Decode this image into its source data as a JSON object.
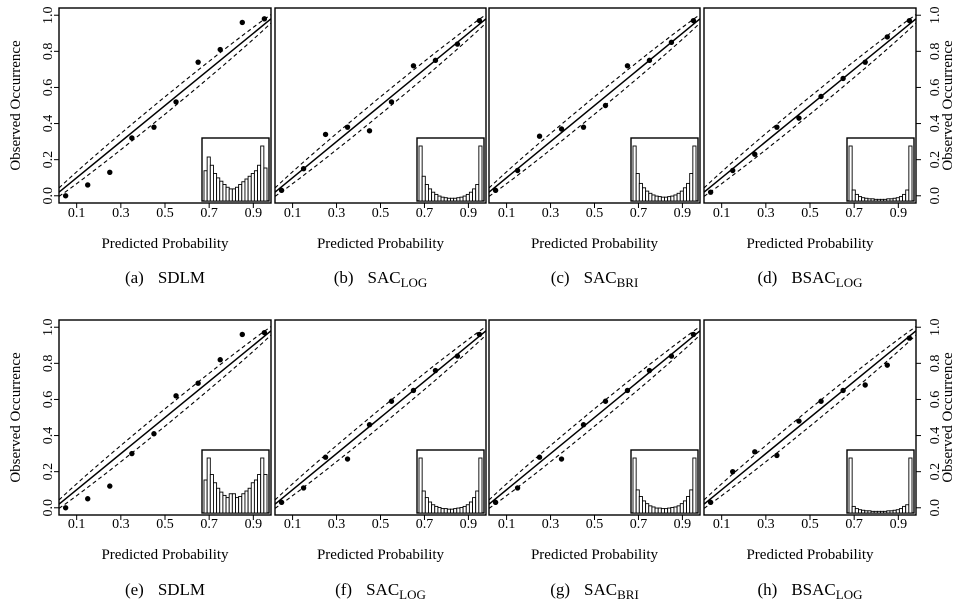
{
  "figure": {
    "xlabel": "Predicted Probability",
    "ylabel": "Observed Occurrence"
  },
  "chart_data": [
    {
      "type": "scatter",
      "panel": "a",
      "caption_prefix": "(a)",
      "caption_main": "SDLM",
      "caption_sub": "",
      "xticks": [
        "0.1",
        "0.3",
        "0.5",
        "0.7",
        "0.9"
      ],
      "yticks": [
        "0.0",
        "0.2",
        "0.4",
        "0.6",
        "0.8",
        "1.0"
      ],
      "xlim": [
        0.02,
        0.98
      ],
      "ylim": [
        -0.04,
        1.04
      ],
      "x": [
        0.05,
        0.15,
        0.25,
        0.35,
        0.45,
        0.55,
        0.65,
        0.75,
        0.85,
        0.95
      ],
      "y": [
        0.0,
        0.06,
        0.13,
        0.32,
        0.38,
        0.52,
        0.74,
        0.81,
        0.96,
        0.98
      ],
      "hist": [
        0.55,
        0.8,
        0.65,
        0.5,
        0.42,
        0.36,
        0.3,
        0.25,
        0.22,
        0.22,
        0.25,
        0.3,
        0.35,
        0.4,
        0.45,
        0.5,
        0.55,
        0.65,
        1.0,
        0.6
      ]
    },
    {
      "type": "scatter",
      "panel": "b",
      "caption_prefix": "(b)",
      "caption_main": "SAC",
      "caption_sub": "LOG",
      "xticks": [
        "0.1",
        "0.3",
        "0.5",
        "0.7",
        "0.9"
      ],
      "yticks": [
        "0.0",
        "0.2",
        "0.4",
        "0.6",
        "0.8",
        "1.0"
      ],
      "xlim": [
        0.02,
        0.98
      ],
      "ylim": [
        -0.04,
        1.04
      ],
      "x": [
        0.05,
        0.15,
        0.25,
        0.35,
        0.45,
        0.55,
        0.65,
        0.75,
        0.85,
        0.95
      ],
      "y": [
        0.03,
        0.15,
        0.34,
        0.38,
        0.36,
        0.52,
        0.72,
        0.75,
        0.84,
        0.97
      ],
      "hist": [
        1.0,
        0.45,
        0.3,
        0.22,
        0.16,
        0.12,
        0.09,
        0.07,
        0.06,
        0.05,
        0.05,
        0.05,
        0.06,
        0.07,
        0.09,
        0.12,
        0.16,
        0.22,
        0.3,
        1.0
      ]
    },
    {
      "type": "scatter",
      "panel": "c",
      "caption_prefix": "(c)",
      "caption_main": "SAC",
      "caption_sub": "BRI",
      "xticks": [
        "0.1",
        "0.3",
        "0.5",
        "0.7",
        "0.9"
      ],
      "yticks": [
        "0.0",
        "0.2",
        "0.4",
        "0.6",
        "0.8",
        "1.0"
      ],
      "xlim": [
        0.02,
        0.98
      ],
      "ylim": [
        -0.04,
        1.04
      ],
      "x": [
        0.05,
        0.15,
        0.25,
        0.35,
        0.45,
        0.55,
        0.65,
        0.75,
        0.85,
        0.95
      ],
      "y": [
        0.03,
        0.14,
        0.33,
        0.37,
        0.38,
        0.5,
        0.72,
        0.75,
        0.85,
        0.97
      ],
      "hist": [
        1.0,
        0.5,
        0.32,
        0.24,
        0.18,
        0.14,
        0.11,
        0.09,
        0.08,
        0.07,
        0.07,
        0.08,
        0.09,
        0.11,
        0.14,
        0.18,
        0.24,
        0.32,
        0.5,
        1.0
      ]
    },
    {
      "type": "scatter",
      "panel": "d",
      "caption_prefix": "(d)",
      "caption_main": "BSAC",
      "caption_sub": "LOG",
      "xticks": [
        "0.1",
        "0.3",
        "0.5",
        "0.7",
        "0.9"
      ],
      "yticks": [
        "0.0",
        "0.2",
        "0.4",
        "0.6",
        "0.8",
        "1.0"
      ],
      "xlim": [
        0.02,
        0.98
      ],
      "ylim": [
        -0.04,
        1.04
      ],
      "x": [
        0.05,
        0.15,
        0.25,
        0.35,
        0.45,
        0.55,
        0.65,
        0.75,
        0.85,
        0.95
      ],
      "y": [
        0.02,
        0.14,
        0.23,
        0.38,
        0.43,
        0.55,
        0.65,
        0.74,
        0.88,
        0.97
      ],
      "hist": [
        1.0,
        0.2,
        0.12,
        0.08,
        0.06,
        0.05,
        0.04,
        0.04,
        0.03,
        0.03,
        0.03,
        0.03,
        0.04,
        0.04,
        0.05,
        0.06,
        0.08,
        0.12,
        0.2,
        1.0
      ]
    },
    {
      "type": "scatter",
      "panel": "e",
      "caption_prefix": "(e)",
      "caption_main": "SDLM",
      "caption_sub": "",
      "xticks": [
        "0.1",
        "0.3",
        "0.5",
        "0.7",
        "0.9"
      ],
      "yticks": [
        "0.0",
        "0.2",
        "0.4",
        "0.6",
        "0.8",
        "1.0"
      ],
      "xlim": [
        0.02,
        0.98
      ],
      "ylim": [
        -0.04,
        1.04
      ],
      "x": [
        0.05,
        0.15,
        0.25,
        0.35,
        0.45,
        0.55,
        0.65,
        0.75,
        0.85,
        0.95
      ],
      "y": [
        0.0,
        0.05,
        0.12,
        0.3,
        0.41,
        0.62,
        0.69,
        0.82,
        0.96,
        0.97
      ],
      "hist": [
        0.6,
        1.0,
        0.7,
        0.55,
        0.45,
        0.38,
        0.32,
        0.28,
        0.35,
        0.35,
        0.28,
        0.3,
        0.35,
        0.4,
        0.45,
        0.55,
        0.6,
        0.7,
        1.0,
        0.7
      ]
    },
    {
      "type": "scatter",
      "panel": "f",
      "caption_prefix": "(f)",
      "caption_main": "SAC",
      "caption_sub": "LOG",
      "xticks": [
        "0.1",
        "0.3",
        "0.5",
        "0.7",
        "0.9"
      ],
      "yticks": [
        "0.0",
        "0.2",
        "0.4",
        "0.6",
        "0.8",
        "1.0"
      ],
      "xlim": [
        0.02,
        0.98
      ],
      "ylim": [
        -0.04,
        1.04
      ],
      "x": [
        0.05,
        0.15,
        0.25,
        0.35,
        0.45,
        0.55,
        0.65,
        0.75,
        0.85,
        0.95
      ],
      "y": [
        0.03,
        0.11,
        0.28,
        0.27,
        0.46,
        0.59,
        0.65,
        0.76,
        0.84,
        0.96
      ],
      "hist": [
        1.0,
        0.4,
        0.28,
        0.2,
        0.15,
        0.12,
        0.1,
        0.08,
        0.08,
        0.07,
        0.07,
        0.08,
        0.09,
        0.1,
        0.12,
        0.15,
        0.2,
        0.28,
        0.4,
        1.0
      ]
    },
    {
      "type": "scatter",
      "panel": "g",
      "caption_prefix": "(g)",
      "caption_main": "SAC",
      "caption_sub": "BRI",
      "xticks": [
        "0.1",
        "0.3",
        "0.5",
        "0.7",
        "0.9"
      ],
      "yticks": [
        "0.0",
        "0.2",
        "0.4",
        "0.6",
        "0.8",
        "1.0"
      ],
      "xlim": [
        0.02,
        0.98
      ],
      "ylim": [
        -0.04,
        1.04
      ],
      "x": [
        0.05,
        0.15,
        0.25,
        0.35,
        0.45,
        0.55,
        0.65,
        0.75,
        0.85,
        0.95
      ],
      "y": [
        0.03,
        0.11,
        0.28,
        0.27,
        0.46,
        0.59,
        0.65,
        0.76,
        0.84,
        0.96
      ],
      "hist": [
        1.0,
        0.42,
        0.3,
        0.22,
        0.17,
        0.13,
        0.11,
        0.09,
        0.09,
        0.08,
        0.08,
        0.09,
        0.1,
        0.11,
        0.13,
        0.17,
        0.22,
        0.3,
        0.42,
        1.0
      ]
    },
    {
      "type": "scatter",
      "panel": "h",
      "caption_prefix": "(h)",
      "caption_main": "BSAC",
      "caption_sub": "LOG",
      "xticks": [
        "0.1",
        "0.3",
        "0.5",
        "0.7",
        "0.9"
      ],
      "yticks": [
        "0.0",
        "0.2",
        "0.4",
        "0.6",
        "0.8",
        "1.0"
      ],
      "xlim": [
        0.02,
        0.98
      ],
      "ylim": [
        -0.04,
        1.04
      ],
      "x": [
        0.05,
        0.15,
        0.25,
        0.35,
        0.45,
        0.55,
        0.65,
        0.75,
        0.85,
        0.95
      ],
      "y": [
        0.03,
        0.2,
        0.31,
        0.29,
        0.48,
        0.59,
        0.65,
        0.68,
        0.79,
        0.94
      ],
      "hist": [
        1.0,
        0.12,
        0.08,
        0.06,
        0.05,
        0.04,
        0.04,
        0.03,
        0.03,
        0.03,
        0.03,
        0.03,
        0.04,
        0.04,
        0.05,
        0.06,
        0.08,
        0.12,
        0.15,
        1.0
      ]
    }
  ]
}
